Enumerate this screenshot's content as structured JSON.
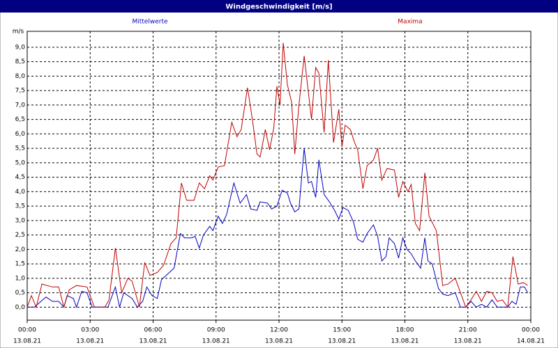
{
  "chart_data": {
    "type": "line",
    "title": "Windgeschwindigkeit [m/s]",
    "y_unit": "m/s",
    "xlim": [
      0,
      24
    ],
    "xticks": [
      {
        "value": 0,
        "label": "00:00"
      },
      {
        "value": 3,
        "label": "03:00"
      },
      {
        "value": 6,
        "label": "06:00"
      },
      {
        "value": 9,
        "label": "09:00"
      },
      {
        "value": 12,
        "label": "12:00"
      },
      {
        "value": 15,
        "label": "15:00"
      },
      {
        "value": 18,
        "label": "18:00"
      },
      {
        "value": 21,
        "label": "21:00"
      },
      {
        "value": 24,
        "label": "00:00"
      }
    ],
    "xtick_dates": [
      "13.08.21",
      "13.08.21",
      "13.08.21",
      "13.08.21",
      "13.08.21",
      "13.08.21",
      "13.08.21",
      "13.08.21",
      "14.08.21"
    ],
    "ylim": [
      -0.45,
      9.55
    ],
    "yticks": [
      {
        "value": 0,
        "label": "0,0"
      },
      {
        "value": 0.5,
        "label": "0,5"
      },
      {
        "value": 1,
        "label": "1,0"
      },
      {
        "value": 1.5,
        "label": "1,5"
      },
      {
        "value": 2,
        "label": "2,0"
      },
      {
        "value": 2.5,
        "label": "2,5"
      },
      {
        "value": 3,
        "label": "3,0"
      },
      {
        "value": 3.5,
        "label": "3,5"
      },
      {
        "value": 4,
        "label": "4,0"
      },
      {
        "value": 4.5,
        "label": "4,5"
      },
      {
        "value": 5,
        "label": "5,0"
      },
      {
        "value": 5.5,
        "label": "5,5"
      },
      {
        "value": 6,
        "label": "6,0"
      },
      {
        "value": 6.5,
        "label": "6,5"
      },
      {
        "value": 7,
        "label": "7,0"
      },
      {
        "value": 7.5,
        "label": "7,5"
      },
      {
        "value": 8,
        "label": "8,0"
      },
      {
        "value": 8.5,
        "label": "8,5"
      },
      {
        "value": 9,
        "label": "9,0"
      }
    ],
    "grid": true,
    "series": [
      {
        "name": "Mittelwerte",
        "color": "#0000c0",
        "x": [
          0,
          0.35,
          0.65,
          0.9,
          1.2,
          1.5,
          1.75,
          1.9,
          2.2,
          2.35,
          2.6,
          2.85,
          3.1,
          3.85,
          4.2,
          4.4,
          4.6,
          5.0,
          5.25,
          5.5,
          5.7,
          5.95,
          6.2,
          6.4,
          6.85,
          7.0,
          7.3,
          7.5,
          7.85,
          8.0,
          8.2,
          8.4,
          8.7,
          8.85,
          9.1,
          9.3,
          9.5,
          9.85,
          10.15,
          10.45,
          10.65,
          10.95,
          11.1,
          11.45,
          11.65,
          11.9,
          12.15,
          12.4,
          12.55,
          12.75,
          12.95,
          13.2,
          13.4,
          13.55,
          13.75,
          13.9,
          14.15,
          14.4,
          14.65,
          14.85,
          15.05,
          15.3,
          15.55,
          15.75,
          16.0,
          16.2,
          16.5,
          16.7,
          16.9,
          17.1,
          17.25,
          17.5,
          17.7,
          17.9,
          18.1,
          18.3,
          18.5,
          18.75,
          18.95,
          19.1,
          19.3,
          19.6,
          19.8,
          20.05,
          20.4,
          20.65,
          20.9,
          21.15,
          21.4,
          21.65,
          21.9,
          22.15,
          22.4,
          22.65,
          22.9,
          23.1,
          23.3,
          23.5,
          23.7,
          23.85
        ],
        "values": [
          0,
          0,
          0.2,
          0.35,
          0.2,
          0.2,
          0,
          0.4,
          0.3,
          0,
          0.55,
          0.5,
          0,
          0,
          0.7,
          0,
          0.5,
          0.3,
          0,
          0.2,
          0.7,
          0.4,
          0.3,
          0.95,
          1.25,
          1.35,
          2.55,
          2.4,
          2.4,
          2.45,
          2.05,
          2.5,
          2.8,
          2.65,
          3.15,
          2.9,
          3.2,
          4.3,
          3.6,
          3.9,
          3.4,
          3.35,
          3.65,
          3.6,
          3.4,
          3.5,
          4.05,
          3.95,
          3.6,
          3.3,
          3.4,
          5.5,
          4.3,
          4.35,
          3.8,
          5.1,
          3.9,
          3.65,
          3.35,
          3.05,
          3.45,
          3.35,
          2.95,
          2.35,
          2.25,
          2.55,
          2.85,
          2.45,
          1.6,
          1.75,
          2.4,
          2.2,
          1.7,
          2.4,
          2.0,
          1.85,
          1.6,
          1.35,
          2.4,
          1.6,
          1.5,
          0.65,
          0.45,
          0.4,
          0.5,
          0,
          0,
          0.2,
          0,
          0.1,
          0,
          0.25,
          0,
          0,
          0,
          0.2,
          0.1,
          0.7,
          0.7,
          0.5
        ]
      },
      {
        "name": "Maxima",
        "color": "#c00000",
        "x": [
          0,
          0.2,
          0.43,
          0.7,
          1.2,
          1.5,
          1.75,
          2.0,
          2.35,
          2.85,
          3.2,
          3.7,
          3.9,
          4.2,
          4.5,
          4.8,
          5.0,
          5.35,
          5.6,
          5.85,
          6.2,
          6.5,
          6.85,
          7.1,
          7.35,
          7.6,
          7.95,
          8.2,
          8.45,
          8.7,
          8.85,
          9.1,
          9.4,
          9.75,
          10.0,
          10.2,
          10.5,
          10.75,
          10.95,
          11.1,
          11.35,
          11.55,
          11.75,
          11.9,
          12.05,
          12.2,
          12.4,
          12.6,
          12.75,
          12.95,
          13.2,
          13.55,
          13.75,
          13.9,
          14.15,
          14.35,
          14.6,
          14.85,
          15.0,
          15.15,
          15.4,
          15.6,
          15.75,
          16.0,
          16.2,
          16.5,
          16.7,
          16.9,
          17.15,
          17.5,
          17.7,
          17.9,
          18.15,
          18.3,
          18.5,
          18.7,
          18.95,
          19.15,
          19.5,
          19.8,
          20.05,
          20.4,
          20.65,
          20.9,
          21.15,
          21.4,
          21.65,
          21.9,
          22.15,
          22.4,
          22.65,
          22.9,
          23.15,
          23.4,
          23.65,
          23.85
        ],
        "values": [
          0,
          0.4,
          0,
          0.8,
          0.7,
          0.7,
          0,
          0.6,
          0.75,
          0.7,
          0,
          0,
          0.25,
          2.05,
          0.5,
          1.0,
          0.9,
          0,
          1.55,
          1.1,
          1.2,
          1.45,
          2.2,
          2.4,
          4.3,
          3.7,
          3.7,
          4.3,
          4.1,
          4.55,
          4.4,
          4.85,
          4.9,
          6.4,
          5.9,
          6.15,
          7.6,
          6.4,
          5.3,
          5.2,
          6.15,
          5.45,
          6.2,
          7.65,
          7.0,
          9.15,
          7.7,
          7.1,
          5.3,
          7.0,
          8.7,
          6.5,
          8.3,
          8.1,
          6.05,
          8.55,
          5.7,
          6.85,
          5.55,
          6.3,
          6.15,
          5.7,
          5.45,
          4.1,
          4.9,
          5.1,
          5.5,
          4.4,
          4.8,
          4.75,
          3.8,
          4.35,
          4.0,
          4.25,
          2.9,
          2.65,
          4.65,
          3.15,
          2.65,
          0.75,
          0.8,
          1.0,
          0.5,
          0,
          0.25,
          0.55,
          0.2,
          0.55,
          0.5,
          0.2,
          0.25,
          0,
          1.75,
          0.8,
          0.85,
          0.75
        ]
      }
    ]
  }
}
